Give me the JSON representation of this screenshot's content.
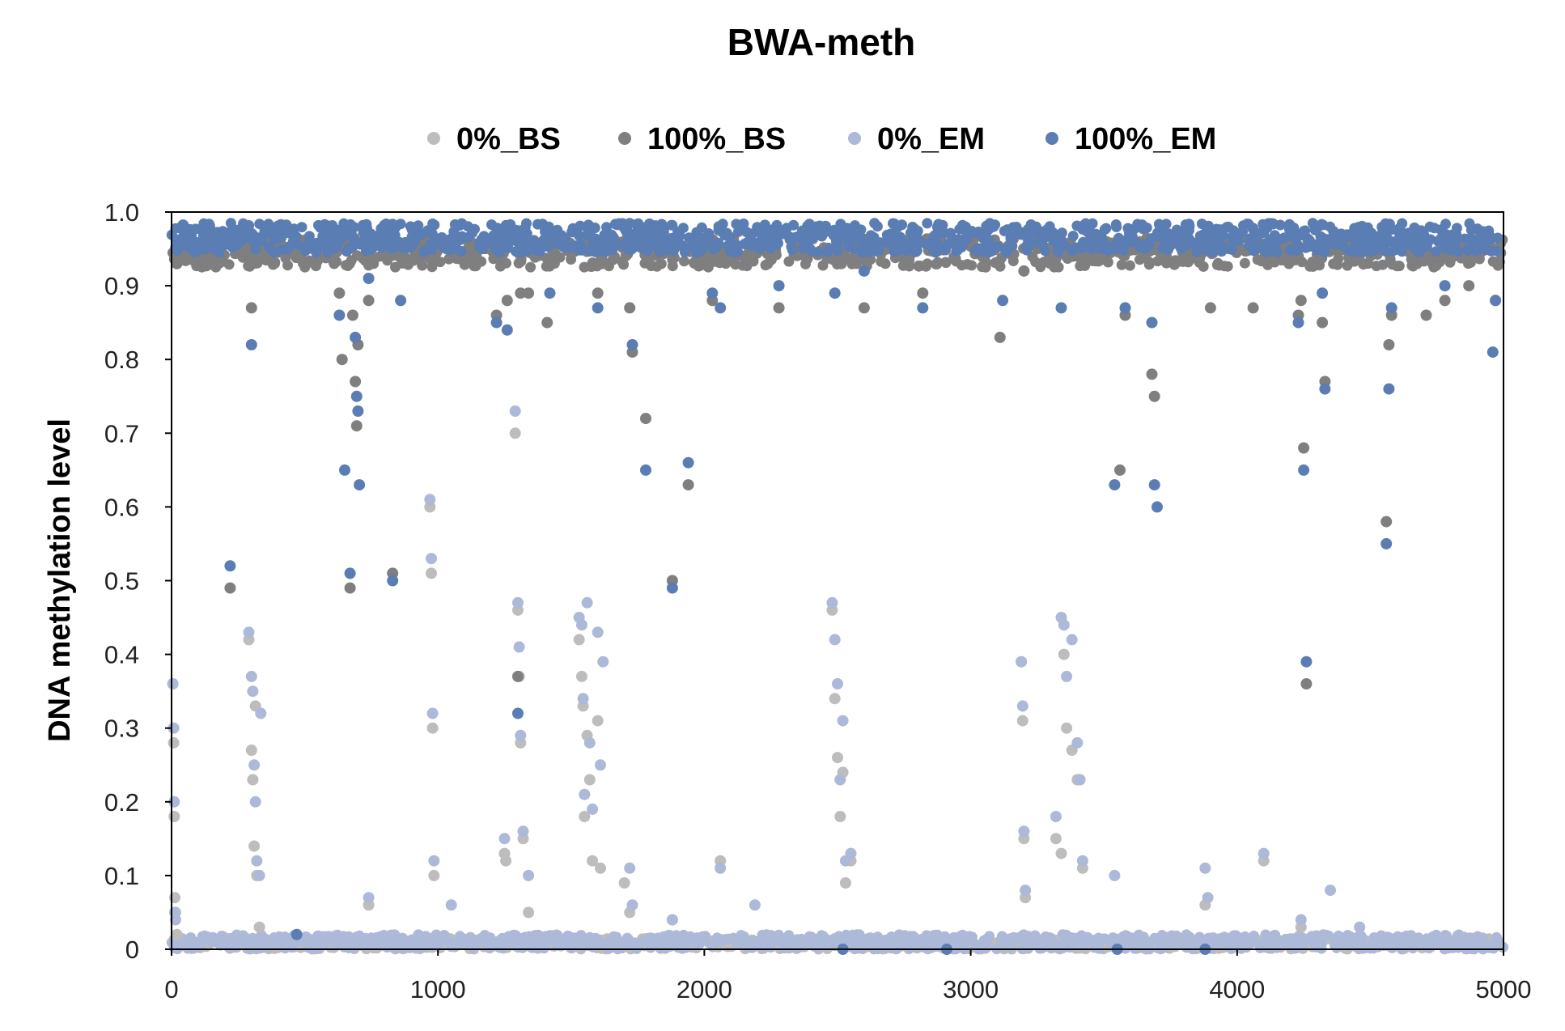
{
  "chart_data": {
    "type": "scatter",
    "title": "BWA-meth",
    "xlabel": "",
    "ylabel": "DNA methylation level",
    "xlim": [
      0,
      5000
    ],
    "ylim": [
      0,
      1.0
    ],
    "x_ticks": [
      "0",
      "1000",
      "2000",
      "3000",
      "4000",
      "5000"
    ],
    "y_ticks": [
      "0",
      "0.1",
      "0.2",
      "0.3",
      "0.4",
      "0.5",
      "0.6",
      "0.7",
      "0.8",
      "0.9",
      "1.0"
    ],
    "grid": false,
    "legend_position": "top",
    "series": [
      {
        "name": "0%_BS",
        "color": "#bdbdbd",
        "points": [
          [
            5,
            0.36
          ],
          [
            8,
            0.28
          ],
          [
            10,
            0.18
          ],
          [
            12,
            0.07
          ],
          [
            15,
            0.05
          ],
          [
            20,
            0.02
          ],
          [
            290,
            0.42
          ],
          [
            300,
            0.27
          ],
          [
            305,
            0.23
          ],
          [
            310,
            0.14
          ],
          [
            315,
            0.33
          ],
          [
            320,
            0.1
          ],
          [
            330,
            0.03
          ],
          [
            740,
            0.06
          ],
          [
            970,
            0.6
          ],
          [
            975,
            0.51
          ],
          [
            980,
            0.3
          ],
          [
            985,
            0.1
          ],
          [
            1250,
            0.13
          ],
          [
            1255,
            0.12
          ],
          [
            1290,
            0.7
          ],
          [
            1300,
            0.46
          ],
          [
            1305,
            0.37
          ],
          [
            1310,
            0.28
          ],
          [
            1320,
            0.15
          ],
          [
            1340,
            0.05
          ],
          [
            1530,
            0.42
          ],
          [
            1540,
            0.37
          ],
          [
            1545,
            0.33
          ],
          [
            1550,
            0.18
          ],
          [
            1560,
            0.29
          ],
          [
            1570,
            0.23
          ],
          [
            1580,
            0.12
          ],
          [
            1600,
            0.31
          ],
          [
            1610,
            0.11
          ],
          [
            1700,
            0.09
          ],
          [
            1720,
            0.05
          ],
          [
            1880,
            0.04
          ],
          [
            2060,
            0.12
          ],
          [
            2480,
            0.46
          ],
          [
            2490,
            0.34
          ],
          [
            2500,
            0.26
          ],
          [
            2510,
            0.18
          ],
          [
            2520,
            0.24
          ],
          [
            2530,
            0.09
          ],
          [
            2550,
            0.12
          ],
          [
            3190,
            0.39
          ],
          [
            3195,
            0.31
          ],
          [
            3200,
            0.15
          ],
          [
            3205,
            0.07
          ],
          [
            3320,
            0.15
          ],
          [
            3340,
            0.13
          ],
          [
            3350,
            0.4
          ],
          [
            3360,
            0.3
          ],
          [
            3380,
            0.27
          ],
          [
            3400,
            0.23
          ],
          [
            3420,
            0.11
          ],
          [
            3880,
            0.06
          ],
          [
            4100,
            0.12
          ],
          [
            4240,
            0.03
          ]
        ]
      },
      {
        "name": "100%_BS",
        "color": "#7f7f7f",
        "points": [
          [
            20,
            0.93
          ],
          [
            220,
            0.49
          ],
          [
            300,
            0.87
          ],
          [
            630,
            0.89
          ],
          [
            640,
            0.8
          ],
          [
            670,
            0.49
          ],
          [
            680,
            0.86
          ],
          [
            690,
            0.77
          ],
          [
            695,
            0.71
          ],
          [
            700,
            0.82
          ],
          [
            740,
            0.88
          ],
          [
            830,
            0.51
          ],
          [
            1220,
            0.86
          ],
          [
            1260,
            0.88
          ],
          [
            1300,
            0.37
          ],
          [
            1310,
            0.89
          ],
          [
            1340,
            0.89
          ],
          [
            1410,
            0.85
          ],
          [
            1600,
            0.89
          ],
          [
            1720,
            0.87
          ],
          [
            1730,
            0.81
          ],
          [
            1780,
            0.72
          ],
          [
            1880,
            0.5
          ],
          [
            1940,
            0.63
          ],
          [
            2030,
            0.88
          ],
          [
            2280,
            0.87
          ],
          [
            2600,
            0.87
          ],
          [
            2820,
            0.89
          ],
          [
            3110,
            0.83
          ],
          [
            3200,
            0.92
          ],
          [
            3560,
            0.65
          ],
          [
            3580,
            0.86
          ],
          [
            3680,
            0.78
          ],
          [
            3690,
            0.75
          ],
          [
            3900,
            0.87
          ],
          [
            4060,
            0.87
          ],
          [
            4230,
            0.86
          ],
          [
            4240,
            0.88
          ],
          [
            4250,
            0.68
          ],
          [
            4260,
            0.36
          ],
          [
            4320,
            0.85
          ],
          [
            4330,
            0.77
          ],
          [
            4560,
            0.58
          ],
          [
            4570,
            0.82
          ],
          [
            4580,
            0.86
          ],
          [
            4710,
            0.86
          ],
          [
            4780,
            0.88
          ],
          [
            4870,
            0.9
          ],
          [
            4970,
            0.88
          ]
        ]
      },
      {
        "name": "0%_EM",
        "color": "#adb9d8",
        "points": [
          [
            5,
            0.36
          ],
          [
            8,
            0.3
          ],
          [
            10,
            0.2
          ],
          [
            12,
            0.05
          ],
          [
            15,
            0.04
          ],
          [
            290,
            0.43
          ],
          [
            300,
            0.37
          ],
          [
            305,
            0.35
          ],
          [
            310,
            0.25
          ],
          [
            315,
            0.2
          ],
          [
            320,
            0.12
          ],
          [
            330,
            0.1
          ],
          [
            335,
            0.32
          ],
          [
            740,
            0.07
          ],
          [
            970,
            0.61
          ],
          [
            975,
            0.53
          ],
          [
            980,
            0.32
          ],
          [
            985,
            0.12
          ],
          [
            1050,
            0.06
          ],
          [
            1250,
            0.15
          ],
          [
            1290,
            0.73
          ],
          [
            1300,
            0.47
          ],
          [
            1305,
            0.41
          ],
          [
            1310,
            0.29
          ],
          [
            1320,
            0.16
          ],
          [
            1340,
            0.1
          ],
          [
            1530,
            0.45
          ],
          [
            1540,
            0.44
          ],
          [
            1545,
            0.34
          ],
          [
            1550,
            0.21
          ],
          [
            1560,
            0.47
          ],
          [
            1570,
            0.28
          ],
          [
            1580,
            0.19
          ],
          [
            1600,
            0.43
          ],
          [
            1610,
            0.25
          ],
          [
            1620,
            0.39
          ],
          [
            1720,
            0.11
          ],
          [
            1730,
            0.06
          ],
          [
            1880,
            0.04
          ],
          [
            2060,
            0.11
          ],
          [
            2190,
            0.06
          ],
          [
            2480,
            0.47
          ],
          [
            2490,
            0.42
          ],
          [
            2500,
            0.36
          ],
          [
            2510,
            0.23
          ],
          [
            2520,
            0.31
          ],
          [
            2530,
            0.12
          ],
          [
            2550,
            0.13
          ],
          [
            3190,
            0.39
          ],
          [
            3195,
            0.33
          ],
          [
            3200,
            0.16
          ],
          [
            3205,
            0.08
          ],
          [
            3320,
            0.18
          ],
          [
            3340,
            0.45
          ],
          [
            3350,
            0.44
          ],
          [
            3360,
            0.37
          ],
          [
            3380,
            0.42
          ],
          [
            3400,
            0.28
          ],
          [
            3410,
            0.23
          ],
          [
            3420,
            0.12
          ],
          [
            3540,
            0.1
          ],
          [
            3880,
            0.11
          ],
          [
            3890,
            0.07
          ],
          [
            4100,
            0.13
          ],
          [
            4240,
            0.04
          ],
          [
            4350,
            0.08
          ],
          [
            4460,
            0.03
          ],
          [
            4980,
            0.01
          ]
        ]
      },
      {
        "name": "100%_EM",
        "color": "#5a7db4",
        "points": [
          [
            220,
            0.52
          ],
          [
            300,
            0.82
          ],
          [
            470,
            0.02
          ],
          [
            630,
            0.86
          ],
          [
            650,
            0.65
          ],
          [
            670,
            0.51
          ],
          [
            690,
            0.83
          ],
          [
            695,
            0.75
          ],
          [
            700,
            0.73
          ],
          [
            705,
            0.63
          ],
          [
            740,
            0.91
          ],
          [
            830,
            0.5
          ],
          [
            860,
            0.88
          ],
          [
            1220,
            0.85
          ],
          [
            1260,
            0.84
          ],
          [
            1300,
            0.32
          ],
          [
            1420,
            0.89
          ],
          [
            1600,
            0.87
          ],
          [
            1730,
            0.82
          ],
          [
            1780,
            0.65
          ],
          [
            1880,
            0.49
          ],
          [
            1940,
            0.66
          ],
          [
            2030,
            0.89
          ],
          [
            2060,
            0.87
          ],
          [
            2280,
            0.9
          ],
          [
            2490,
            0.89
          ],
          [
            2520,
            0.0
          ],
          [
            2600,
            0.92
          ],
          [
            2820,
            0.87
          ],
          [
            2910,
            0.0
          ],
          [
            3120,
            0.88
          ],
          [
            3340,
            0.87
          ],
          [
            3540,
            0.63
          ],
          [
            3550,
            0.0
          ],
          [
            3580,
            0.87
          ],
          [
            3680,
            0.85
          ],
          [
            3690,
            0.63
          ],
          [
            3700,
            0.6
          ],
          [
            3880,
            0.0
          ],
          [
            4230,
            0.85
          ],
          [
            4250,
            0.65
          ],
          [
            4260,
            0.39
          ],
          [
            4320,
            0.89
          ],
          [
            4330,
            0.76
          ],
          [
            4560,
            0.55
          ],
          [
            4570,
            0.76
          ],
          [
            4580,
            0.87
          ],
          [
            4780,
            0.9
          ],
          [
            4960,
            0.81
          ],
          [
            4970,
            0.88
          ]
        ]
      }
    ]
  }
}
